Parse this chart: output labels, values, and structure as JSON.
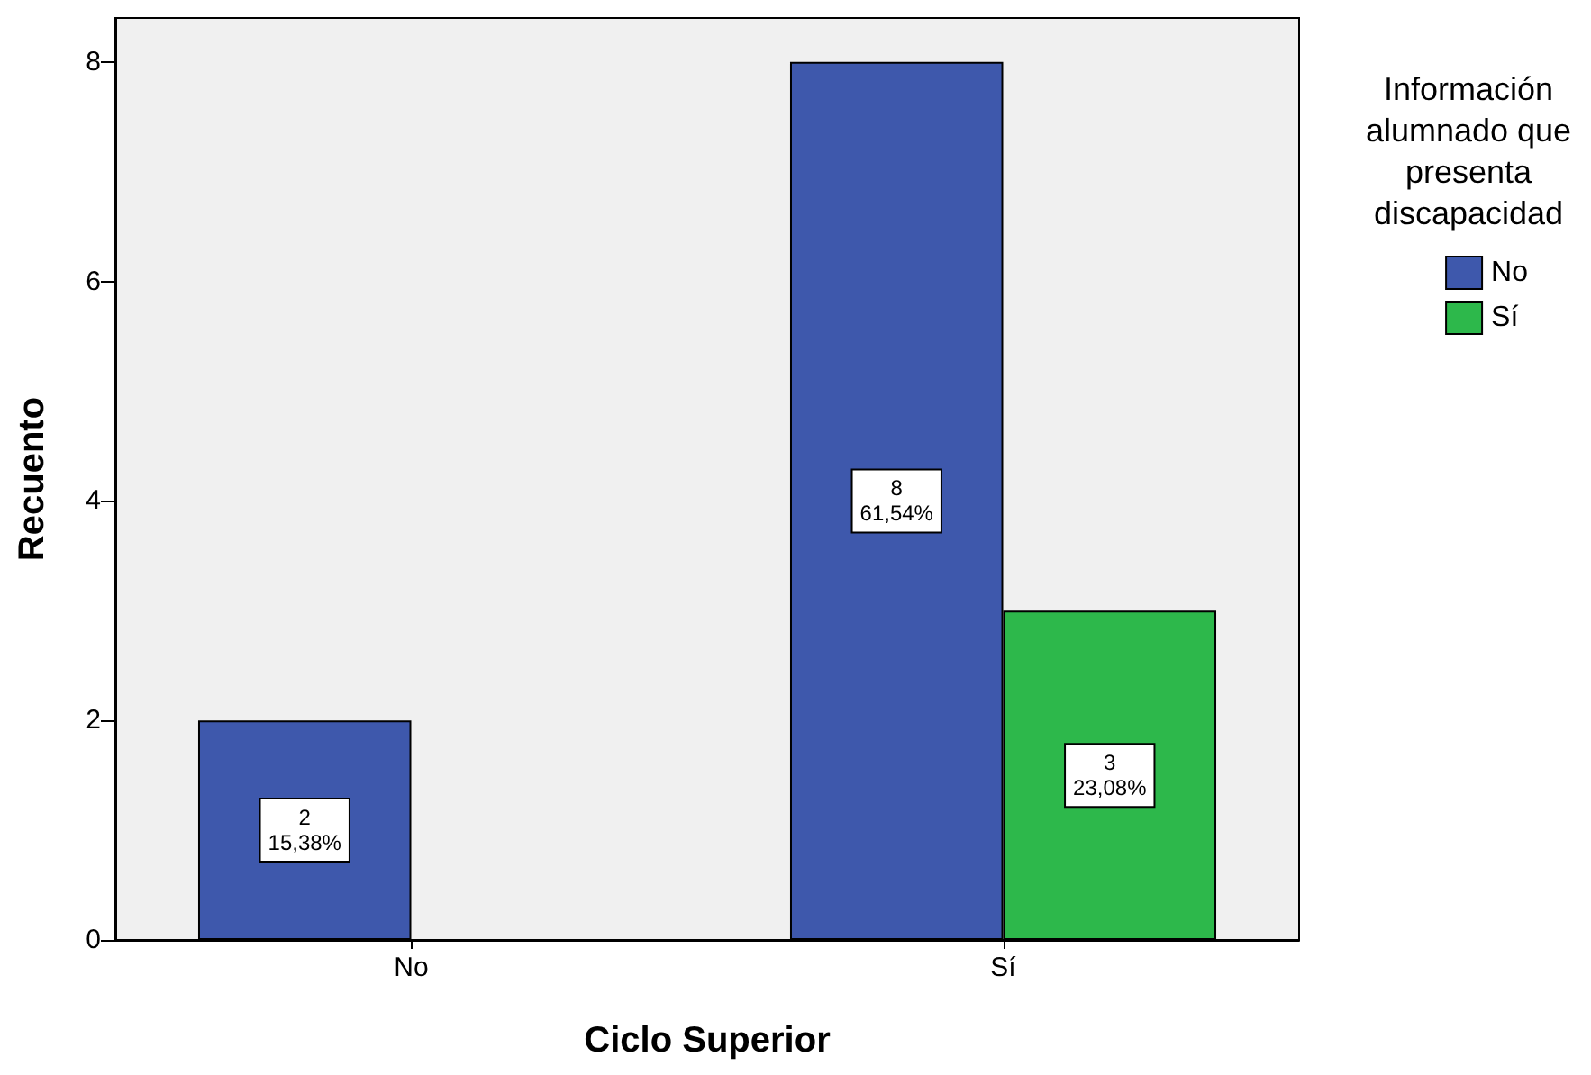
{
  "chart_data": {
    "type": "bar",
    "xlabel": "Ciclo Superior",
    "ylabel": "Recuento",
    "legend_title": "Información\nalumnado que\npresenta\ndiscapacidad",
    "categories": [
      "No",
      "Sí"
    ],
    "series": [
      {
        "name": "No",
        "color": "#3e58ac",
        "values": [
          2,
          8
        ],
        "value_labels": [
          "2\n15,38%",
          "8\n61,54%"
        ]
      },
      {
        "name": "Sí",
        "color": "#2db84b",
        "values": [
          null,
          3
        ],
        "value_labels": [
          null,
          "3\n23,08%"
        ]
      }
    ],
    "ylim": [
      0,
      8.4
    ],
    "yticks": [
      0,
      2,
      4,
      6,
      8
    ],
    "grid": false,
    "legend": "top right"
  }
}
